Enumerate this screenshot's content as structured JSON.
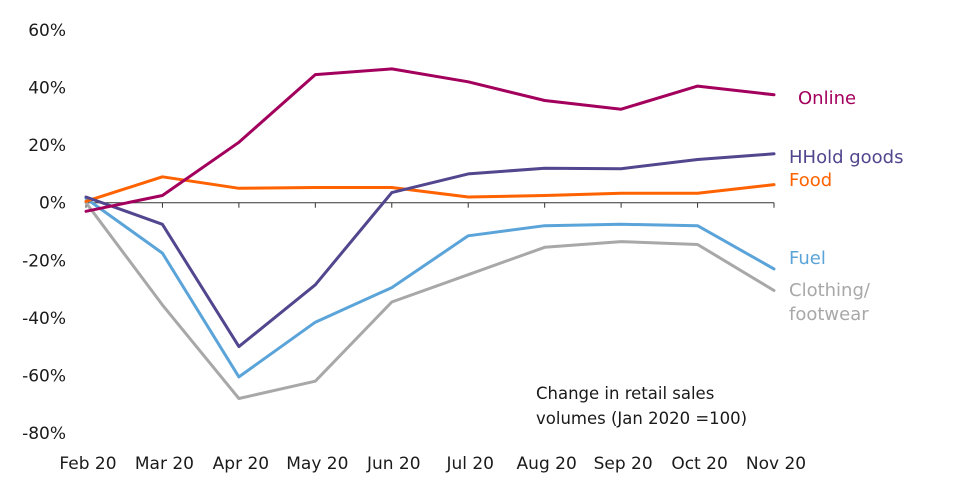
{
  "chart_data": {
    "type": "line",
    "categories": [
      "Feb 20",
      "Mar 20",
      "Apr 20",
      "May 20",
      "Jun 20",
      "Jul 20",
      "Aug 20",
      "Sep 20",
      "Oct 20",
      "Nov 20"
    ],
    "ylim": [
      -80,
      60
    ],
    "yticks": [
      60,
      40,
      20,
      0,
      -20,
      -40,
      -60,
      -80
    ],
    "ytick_labels": [
      "60%",
      "40%",
      "20%",
      "0%",
      "-20%",
      "-40%",
      "-60%",
      "-80%"
    ],
    "annotation": [
      "Change in retail sales",
      "volumes (Jan 2020 =100)"
    ],
    "series": [
      {
        "name": "Online",
        "label_lines": [
          "Online"
        ],
        "color": "#a3005e",
        "values": [
          -3,
          2.5,
          21,
          44.5,
          46.5,
          42,
          35.5,
          32.5,
          40.5,
          37.5
        ]
      },
      {
        "name": "HHold goods",
        "label_lines": [
          "HHold goods"
        ],
        "color": "#52468e",
        "values": [
          2,
          -7.5,
          -50,
          -28.5,
          3.5,
          10,
          12,
          11.8,
          15,
          17
        ]
      },
      {
        "name": "Food",
        "label_lines": [
          "Food"
        ],
        "color": "#ff6200",
        "values": [
          0.5,
          9,
          5,
          5.3,
          5.3,
          2,
          2.5,
          3.3,
          3.3,
          6.3
        ]
      },
      {
        "name": "Fuel",
        "label_lines": [
          "Fuel"
        ],
        "color": "#5ba4d9",
        "values": [
          1.5,
          -17.5,
          -60.5,
          -41.5,
          -29.5,
          -11.5,
          -8,
          -7.5,
          -8,
          -23
        ]
      },
      {
        "name": "Clothing/footwear",
        "label_lines": [
          "Clothing/",
          "footwear"
        ],
        "color": "#a8a8a8",
        "values": [
          0,
          -35.5,
          -68,
          -62,
          -34.5,
          -25,
          -15.5,
          -13.5,
          -14.5,
          -30.5
        ]
      }
    ]
  }
}
